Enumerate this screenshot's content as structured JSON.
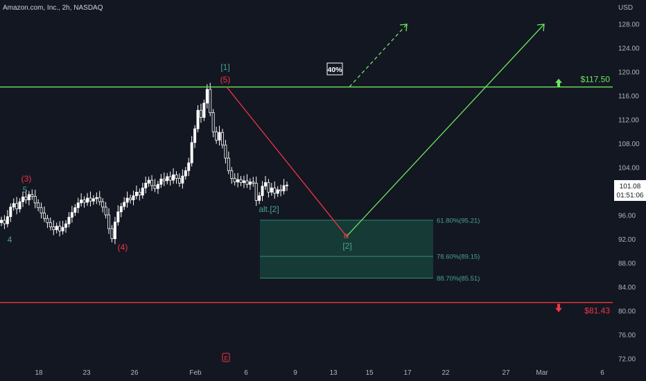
{
  "header": {
    "title": "Amazon.com, Inc., 2h, NASDAQ",
    "currency": "USD"
  },
  "current_price": {
    "value": "101.08",
    "countdown": "01:51:06"
  },
  "colors": {
    "background": "#131722",
    "candle": "#ffffff",
    "red": "#f23645",
    "green": "#6ee85f",
    "teal": "#4aa392",
    "fib_fill": "#163a36"
  },
  "chart_data": {
    "type": "candlestick",
    "title": "Amazon.com, Inc., 2h, NASDAQ",
    "y_axis": {
      "unit": "USD",
      "ticks": [
        72,
        76,
        80,
        84,
        88,
        92,
        96,
        100,
        104,
        108,
        112,
        116,
        120,
        124,
        128
      ],
      "tick_labels": [
        "72.00",
        "76.00",
        "80.00",
        "84.00",
        "88.00",
        "92.00",
        "96.00",
        "100.00",
        "104.00",
        "108.00",
        "112.00",
        "116.00",
        "120.00",
        "124.00",
        "128.00"
      ],
      "range": [
        71,
        130
      ]
    },
    "x_axis": {
      "tick_labels": [
        "18",
        "23",
        "26",
        "Feb",
        "6",
        "9",
        "13",
        "15",
        "17",
        "22",
        "27",
        "Mar",
        "6"
      ]
    },
    "levels": [
      {
        "label": "$117.50",
        "value": 117.5,
        "color": "#6ee85f",
        "direction": "up"
      },
      {
        "label": "$81.43",
        "value": 81.43,
        "color": "#f23645",
        "direction": "down"
      }
    ],
    "fib_zone": {
      "top": 95.21,
      "bottom": 85.51,
      "lines": [
        {
          "label": "61.80%(95.21)",
          "value": 95.21
        },
        {
          "label": "78.60%(89.15)",
          "value": 89.15
        },
        {
          "label": "88.70%(85.51)",
          "value": 85.51
        }
      ]
    },
    "wave_labels": [
      {
        "text": "4",
        "color": "teal"
      },
      {
        "text": "5",
        "color": "teal"
      },
      {
        "text": "(3)",
        "color": "red"
      },
      {
        "text": "(4)",
        "color": "red"
      },
      {
        "text": "[1]",
        "color": "teal"
      },
      {
        "text": "(5)",
        "color": "red"
      },
      {
        "text": "alt.[2]",
        "color": "teal"
      },
      {
        "text": "[2]",
        "color": "teal"
      }
    ],
    "annotation": {
      "text": "40%"
    },
    "earnings_marker": "E",
    "closes": [
      95.2,
      94.6,
      95.8,
      97.4,
      98.0,
      97.1,
      98.3,
      99.1,
      98.6,
      99.5,
      99.2,
      98.1,
      97.3,
      96.4,
      95.5,
      94.8,
      94.1,
      93.6,
      94.2,
      93.4,
      94.0,
      94.6,
      95.7,
      96.5,
      97.3,
      98.1,
      98.6,
      98.2,
      98.9,
      98.4,
      98.8,
      99.0,
      98.3,
      97.4,
      96.1,
      93.8,
      92.1,
      94.9,
      96.6,
      97.5,
      98.2,
      98.9,
      98.6,
      99.3,
      99.9,
      99.4,
      100.6,
      101.4,
      101.9,
      101.0,
      100.5,
      101.2,
      102.1,
      101.8,
      102.5,
      101.9,
      102.8,
      102.2,
      101.4,
      102.6,
      103.5,
      104.8,
      108.2,
      110.5,
      113.6,
      112.4,
      114.8,
      117.1,
      113.2,
      110.0,
      108.6,
      109.9,
      107.8,
      105.6,
      103.5,
      102.2,
      101.6,
      102.0,
      101.5,
      101.8,
      101.2,
      101.6,
      101.4,
      98.5,
      99.3,
      100.9,
      101.5,
      99.9,
      100.6,
      99.7,
      100.3,
      100.1,
      101.0,
      101.08
    ]
  }
}
